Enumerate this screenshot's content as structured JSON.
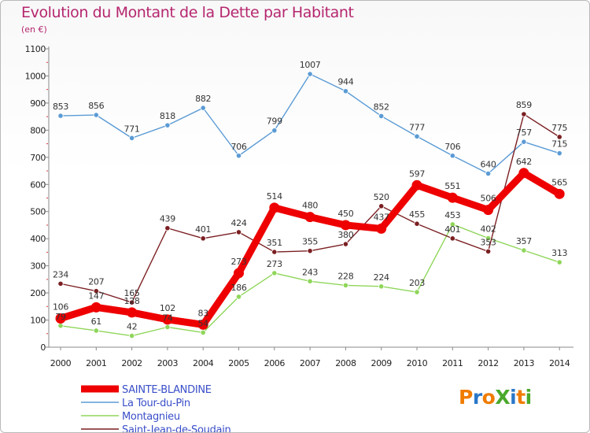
{
  "title": "Evolution du Montant de la Dette par Habitant",
  "unit": "(en €)",
  "logo": {
    "text": "ProXiti",
    "letters": [
      {
        "char": "P",
        "color": "#f07c00"
      },
      {
        "char": "r",
        "color": "#2a77c8"
      },
      {
        "char": "o",
        "color": "#f07c00"
      },
      {
        "char": "X",
        "color": "#4aa82b"
      },
      {
        "char": "i",
        "color": "#2a77c8"
      },
      {
        "char": "t",
        "color": "#f07c00"
      },
      {
        "char": "i",
        "color": "#4aa82b"
      }
    ]
  },
  "chart_data": {
    "type": "line",
    "title": "Evolution du Montant de la Dette par Habitant",
    "ylabel": "(en €)",
    "xlabel": "",
    "ylim": [
      0,
      1100
    ],
    "yticks": [
      0,
      100,
      200,
      300,
      400,
      500,
      600,
      700,
      800,
      900,
      1000,
      1100
    ],
    "grid": false,
    "legend_position": "bottom-left",
    "x": [
      "2000",
      "2001",
      "2002",
      "2003",
      "2004",
      "2005",
      "2006",
      "2007",
      "2008",
      "2009",
      "2010",
      "2011",
      "2012",
      "2013",
      "2014"
    ],
    "series": [
      {
        "name": "SAINTE-BLANDINE",
        "color": "#ee0000",
        "values": [
          106,
          147,
          128,
          102,
          83,
          273,
          514,
          480,
          450,
          437,
          597,
          551,
          506,
          642,
          565
        ]
      },
      {
        "name": "La Tour-du-Pin",
        "color": "#5b9bd5",
        "values": [
          853,
          856,
          771,
          818,
          882,
          706,
          799,
          1007,
          944,
          852,
          777,
          706,
          640,
          757,
          715
        ]
      },
      {
        "name": "Montagnieu",
        "color": "#8fd65a",
        "values": [
          79,
          61,
          42,
          74,
          54,
          186,
          273,
          243,
          228,
          224,
          203,
          453,
          402,
          357,
          313
        ]
      },
      {
        "name": "Saint-Jean-de-Soudain",
        "color": "#7b1f22",
        "values": [
          234,
          207,
          165,
          439,
          401,
          424,
          351,
          355,
          380,
          520,
          455,
          401,
          353,
          859,
          775
        ]
      }
    ]
  }
}
